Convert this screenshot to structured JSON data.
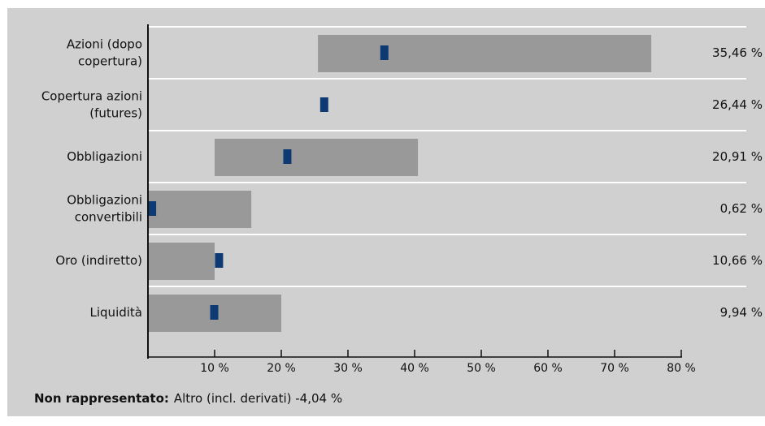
{
  "chart_data": {
    "type": "bar",
    "categories": [
      [
        "Azioni (dopo",
        "copertura)"
      ],
      [
        "Copertura azioni",
        "(futures)"
      ],
      [
        "Obbligazioni"
      ],
      [
        "Obbligazioni",
        "convertibili"
      ],
      [
        "Oro (indiretto)"
      ],
      [
        "Liquidità"
      ]
    ],
    "ranges": [
      [
        25.5,
        75.5
      ],
      null,
      [
        10,
        40.5
      ],
      [
        0,
        15.5
      ],
      [
        0,
        10
      ],
      [
        0,
        20
      ]
    ],
    "values": [
      35.46,
      26.44,
      20.91,
      0.62,
      10.66,
      9.94
    ],
    "value_labels": [
      "35,46 %",
      "26,44 %",
      "20,91 %",
      "0,62 %",
      "10,66 %",
      "9,94 %"
    ],
    "xlim": [
      0,
      80
    ],
    "xticks": [
      10,
      20,
      30,
      40,
      50,
      60,
      70,
      80
    ],
    "xtick_labels": [
      "10 %",
      "20 %",
      "30 %",
      "40 %",
      "50 %",
      "60 %",
      "70 %",
      "80 %"
    ],
    "colors": {
      "background": "#d0d0d0",
      "range_bar": "#999999",
      "marker": "#0d3a73",
      "separator": "#ffffff",
      "axis": "#111111"
    }
  },
  "footnote": {
    "label": "Non rappresentato:",
    "text": "Altro (incl. derivati) -4,04 %"
  }
}
